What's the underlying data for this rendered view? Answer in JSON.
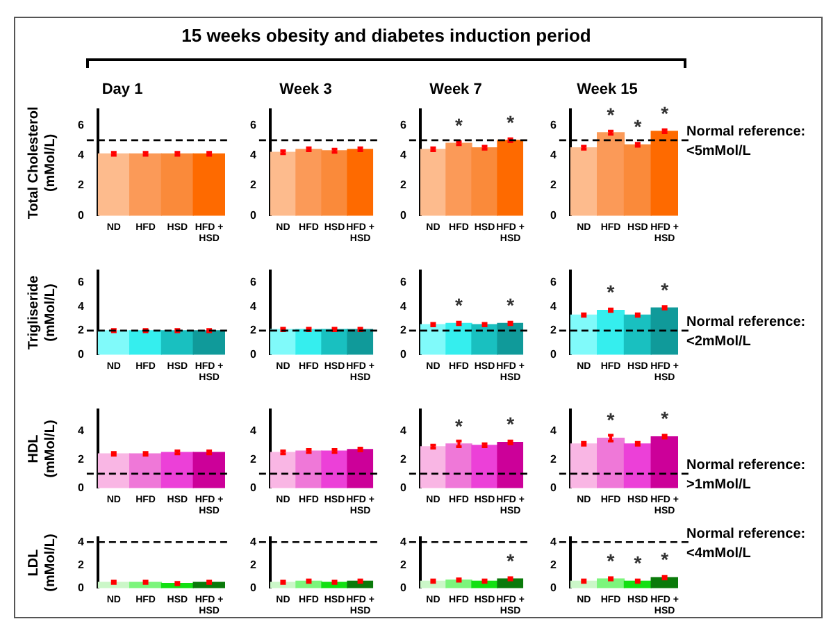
{
  "chart_data": [
    {
      "type": "bar",
      "title": "Day 1",
      "ylabel": "Total Cholesterol (mMol/L)",
      "annotations": [
        "15 weeks obesity and diabetes induction period"
      ],
      "categories": [
        "ND",
        "HFD",
        "HSD",
        "HFD + HSD"
      ],
      "values": [
        4.1,
        4.1,
        4.1,
        4.1
      ],
      "errors": [
        0.1,
        0.1,
        0.1,
        0.1
      ],
      "colors": [
        "#fdbb8d",
        "#fb9a58",
        "#fa8a3a",
        "#fe6a00"
      ],
      "ylim": [
        0,
        7
      ],
      "yticks": [
        0,
        2,
        4,
        6
      ],
      "ref_lines": [
        {
          "axis": "y",
          "value": 5,
          "line_style": "dashed"
        }
      ]
    },
    {
      "type": "bar",
      "title": "Week 3",
      "categories": [
        "ND",
        "HFD",
        "HSD",
        "HFD + HSD"
      ],
      "values": [
        4.2,
        4.4,
        4.3,
        4.4
      ],
      "errors": [
        0.1,
        0.1,
        0.1,
        0.1
      ],
      "colors": [
        "#fdbb8d",
        "#fb9a58",
        "#fa8a3a",
        "#fe6a00"
      ],
      "ylim": [
        0,
        7
      ],
      "yticks": [
        0,
        2,
        4,
        6
      ],
      "ref_lines": [
        {
          "axis": "y",
          "value": 5,
          "line_style": "dashed"
        }
      ]
    },
    {
      "type": "bar",
      "title": "Week 7",
      "categories": [
        "ND",
        "HFD",
        "HSD",
        "HFD + HSD"
      ],
      "values": [
        4.4,
        4.8,
        4.5,
        5.0
      ],
      "errors": [
        0.1,
        0.1,
        0.1,
        0.1
      ],
      "colors": [
        "#fdbb8d",
        "#fb9a58",
        "#fa8a3a",
        "#fe6a00"
      ],
      "ylim": [
        0,
        7
      ],
      "yticks": [
        0,
        2,
        4,
        6
      ],
      "ref_lines": [
        {
          "axis": "y",
          "value": 5,
          "line_style": "dashed"
        }
      ],
      "annotations": [
        {
          "text": "*",
          "x": "HFD",
          "y": 4.8
        },
        {
          "text": "*",
          "x": "HFD + HSD",
          "y": 5.0
        }
      ]
    },
    {
      "type": "bar",
      "title": "Week 15",
      "categories": [
        "ND",
        "HFD",
        "HSD",
        "HFD + HSD"
      ],
      "values": [
        4.5,
        5.5,
        4.7,
        5.6
      ],
      "errors": [
        0.1,
        0.1,
        0.1,
        0.1
      ],
      "colors": [
        "#fdbb8d",
        "#fb9a58",
        "#fa8a3a",
        "#fe6a00"
      ],
      "ylim": [
        0,
        7
      ],
      "yticks": [
        0,
        2,
        4,
        6
      ],
      "ref_lines": [
        {
          "axis": "y",
          "value": 5,
          "line_style": "dashed",
          "label": "Normal reference: <5mMol/L"
        }
      ],
      "annotations": [
        {
          "text": "*",
          "x": "HFD",
          "y": 5.5
        },
        {
          "text": "*",
          "x": "HSD",
          "y": 4.7
        },
        {
          "text": "*",
          "x": "HFD + HSD",
          "y": 5.6
        }
      ]
    },
    {
      "type": "bar",
      "ylabel": "Trigliseride (mMol/L)",
      "categories": [
        "ND",
        "HFD",
        "HSD",
        "HFD + HSD"
      ],
      "values": [
        2.0,
        2.0,
        2.0,
        2.0
      ],
      "errors": [
        0.1,
        0.1,
        0.1,
        0.1
      ],
      "colors": [
        "#80fafa",
        "#35eeee",
        "#19c0c0",
        "#109a9a"
      ],
      "ylim": [
        0,
        7
      ],
      "yticks": [
        0,
        2,
        4,
        6
      ],
      "ref_lines": [
        {
          "axis": "y",
          "value": 2,
          "line_style": "dashed"
        }
      ]
    },
    {
      "type": "bar",
      "categories": [
        "ND",
        "HFD",
        "HSD",
        "HFD + HSD"
      ],
      "values": [
        2.1,
        2.1,
        2.1,
        2.1
      ],
      "errors": [
        0.1,
        0.1,
        0.1,
        0.1
      ],
      "colors": [
        "#80fafa",
        "#35eeee",
        "#19c0c0",
        "#109a9a"
      ],
      "ylim": [
        0,
        7
      ],
      "yticks": [
        0,
        2,
        4,
        6
      ],
      "ref_lines": [
        {
          "axis": "y",
          "value": 2,
          "line_style": "dashed"
        }
      ]
    },
    {
      "type": "bar",
      "categories": [
        "ND",
        "HFD",
        "HSD",
        "HFD + HSD"
      ],
      "values": [
        2.5,
        2.6,
        2.5,
        2.6
      ],
      "errors": [
        0.1,
        0.1,
        0.1,
        0.1
      ],
      "colors": [
        "#80fafa",
        "#35eeee",
        "#19c0c0",
        "#109a9a"
      ],
      "ylim": [
        0,
        7
      ],
      "yticks": [
        0,
        2,
        4,
        6
      ],
      "ref_lines": [
        {
          "axis": "y",
          "value": 2,
          "line_style": "dashed"
        }
      ],
      "annotations": [
        {
          "text": "*",
          "x": "HFD",
          "y": 2.6
        },
        {
          "text": "*",
          "x": "HFD + HSD",
          "y": 2.6
        }
      ]
    },
    {
      "type": "bar",
      "categories": [
        "ND",
        "HFD",
        "HSD",
        "HFD + HSD"
      ],
      "values": [
        3.3,
        3.7,
        3.3,
        3.9
      ],
      "errors": [
        0.1,
        0.1,
        0.1,
        0.1
      ],
      "colors": [
        "#80fafa",
        "#35eeee",
        "#19c0c0",
        "#109a9a"
      ],
      "ylim": [
        0,
        7
      ],
      "yticks": [
        0,
        2,
        4,
        6
      ],
      "ref_lines": [
        {
          "axis": "y",
          "value": 2,
          "line_style": "dashed",
          "label": "Normal reference: <2mMol/L"
        }
      ],
      "annotations": [
        {
          "text": "*",
          "x": "HFD",
          "y": 3.7
        },
        {
          "text": "*",
          "x": "HFD + HSD",
          "y": 3.9
        }
      ]
    },
    {
      "type": "bar",
      "ylabel": "HDL (mMol/L)",
      "categories": [
        "ND",
        "HFD",
        "HSD",
        "HFD + HSD"
      ],
      "values": [
        2.4,
        2.4,
        2.5,
        2.5
      ],
      "errors": [
        0.1,
        0.1,
        0.1,
        0.1
      ],
      "colors": [
        "#f9b6e4",
        "#ef78d8",
        "#ec40d8",
        "#cc0099"
      ],
      "ylim": [
        0,
        5.5
      ],
      "yticks": [
        0,
        2,
        4
      ],
      "ref_lines": [
        {
          "axis": "y",
          "value": 1,
          "line_style": "dashed"
        }
      ]
    },
    {
      "type": "bar",
      "categories": [
        "ND",
        "HFD",
        "HSD",
        "HFD + HSD"
      ],
      "values": [
        2.5,
        2.6,
        2.6,
        2.7
      ],
      "errors": [
        0.1,
        0.1,
        0.1,
        0.1
      ],
      "colors": [
        "#f9b6e4",
        "#ef78d8",
        "#ec40d8",
        "#cc0099"
      ],
      "ylim": [
        0,
        5.5
      ],
      "yticks": [
        0,
        2,
        4
      ],
      "ref_lines": [
        {
          "axis": "y",
          "value": 1,
          "line_style": "dashed"
        }
      ]
    },
    {
      "type": "bar",
      "categories": [
        "ND",
        "HFD",
        "HSD",
        "HFD + HSD"
      ],
      "values": [
        2.9,
        3.1,
        3.0,
        3.2
      ],
      "errors": [
        0.1,
        0.2,
        0.1,
        0.1
      ],
      "colors": [
        "#f9b6e4",
        "#ef78d8",
        "#ec40d8",
        "#cc0099"
      ],
      "ylim": [
        0,
        5.5
      ],
      "yticks": [
        0,
        2,
        4
      ],
      "ref_lines": [
        {
          "axis": "y",
          "value": 1,
          "line_style": "dashed"
        }
      ],
      "annotations": [
        {
          "text": "*",
          "x": "HFD",
          "y": 3.1
        },
        {
          "text": "*",
          "x": "HFD + HSD",
          "y": 3.2
        }
      ]
    },
    {
      "type": "bar",
      "categories": [
        "ND",
        "HFD",
        "HSD",
        "HFD + HSD"
      ],
      "values": [
        3.1,
        3.5,
        3.1,
        3.6
      ],
      "errors": [
        0.1,
        0.2,
        0.1,
        0.1
      ],
      "colors": [
        "#f9b6e4",
        "#ef78d8",
        "#ec40d8",
        "#cc0099"
      ],
      "ylim": [
        0,
        5.5
      ],
      "yticks": [
        0,
        2,
        4
      ],
      "ref_lines": [
        {
          "axis": "y",
          "value": 1,
          "line_style": "dashed",
          "label": "Normal reference: >1mMol/L"
        }
      ],
      "annotations": [
        {
          "text": "*",
          "x": "HFD",
          "y": 3.5
        },
        {
          "text": "*",
          "x": "HFD + HSD",
          "y": 3.6
        }
      ]
    },
    {
      "type": "bar",
      "ylabel": "LDL (mMol/L)",
      "categories": [
        "ND",
        "HFD",
        "HSD",
        "HFD + HSD"
      ],
      "values": [
        0.5,
        0.5,
        0.4,
        0.5
      ],
      "errors": [
        0.1,
        0.1,
        0.1,
        0.1
      ],
      "colors": [
        "#cbf7c8",
        "#7cf57c",
        "#12e012",
        "#0a7a0a"
      ],
      "ylim": [
        0,
        4.4
      ],
      "yticks": [
        0,
        2,
        4
      ],
      "ref_lines": [
        {
          "axis": "y",
          "value": 4,
          "line_style": "dashed"
        }
      ]
    },
    {
      "type": "bar",
      "categories": [
        "ND",
        "HFD",
        "HSD",
        "HFD + HSD"
      ],
      "values": [
        0.5,
        0.6,
        0.5,
        0.6
      ],
      "errors": [
        0.1,
        0.1,
        0.1,
        0.1
      ],
      "colors": [
        "#cbf7c8",
        "#7cf57c",
        "#12e012",
        "#0a7a0a"
      ],
      "ylim": [
        0,
        4.4
      ],
      "yticks": [
        0,
        2,
        4
      ],
      "ref_lines": [
        {
          "axis": "y",
          "value": 4,
          "line_style": "dashed"
        }
      ]
    },
    {
      "type": "bar",
      "categories": [
        "ND",
        "HFD",
        "HSD",
        "HFD + HSD"
      ],
      "values": [
        0.6,
        0.7,
        0.6,
        0.8
      ],
      "errors": [
        0.1,
        0.1,
        0.1,
        0.1
      ],
      "colors": [
        "#cbf7c8",
        "#7cf57c",
        "#12e012",
        "#0a7a0a"
      ],
      "ylim": [
        0,
        4.4
      ],
      "yticks": [
        0,
        2,
        4
      ],
      "ref_lines": [
        {
          "axis": "y",
          "value": 4,
          "line_style": "dashed"
        }
      ],
      "annotations": [
        {
          "text": "*",
          "x": "HFD + HSD",
          "y": 0.8
        }
      ]
    },
    {
      "type": "bar",
      "categories": [
        "ND",
        "HFD",
        "HSD",
        "HFD + HSD"
      ],
      "values": [
        0.6,
        0.8,
        0.6,
        0.9
      ],
      "errors": [
        0.1,
        0.1,
        0.1,
        0.1
      ],
      "colors": [
        "#cbf7c8",
        "#7cf57c",
        "#12e012",
        "#0a7a0a"
      ],
      "ylim": [
        0,
        4.4
      ],
      "yticks": [
        0,
        2,
        4
      ],
      "ref_lines": [
        {
          "axis": "y",
          "value": 4,
          "line_style": "dashed",
          "label": "Normal reference: <4mMol/L"
        }
      ],
      "annotations": [
        {
          "text": "*",
          "x": "HFD",
          "y": 0.8
        },
        {
          "text": "*",
          "x": "HSD",
          "y": 0.6
        },
        {
          "text": "*",
          "x": "HFD + HSD",
          "y": 0.9
        }
      ]
    }
  ]
}
